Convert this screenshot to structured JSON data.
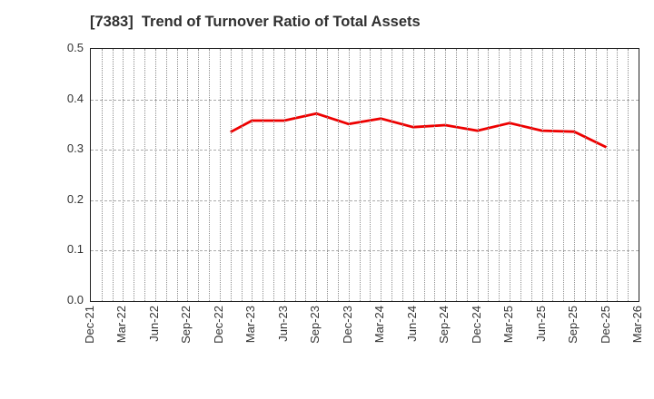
{
  "header": {
    "title": "[7383]  Trend of Turnover Ratio of Total Assets"
  },
  "colors": {
    "line": "#ee0000",
    "spine": "#222222",
    "grid_h": "#ababab",
    "grid_v": "#8f8f8f",
    "text": "#333333",
    "title_text": "#2f2f2f",
    "background": "#ffffff"
  },
  "chart_data": {
    "type": "line",
    "title": "[7383]  Trend of Turnover Ratio of Total Assets",
    "xlabel": "",
    "ylabel": "",
    "ylim": [
      0.0,
      0.5
    ],
    "y_tick_labels": [
      "0.0",
      "0.1",
      "0.2",
      "0.3",
      "0.4",
      "0.5"
    ],
    "x_tick_labels": [
      "Dec-21",
      "Mar-22",
      "Jun-22",
      "Sep-22",
      "Dec-22",
      "Mar-23",
      "Jun-23",
      "Sep-23",
      "Dec-23",
      "Mar-24",
      "Jun-24",
      "Sep-24",
      "Dec-24",
      "Mar-25",
      "Jun-25",
      "Sep-25",
      "Dec-25",
      "Mar-26"
    ],
    "x_months_per_tick": 3,
    "x_total_months": 51,
    "grid": {
      "horizontal": "dashed",
      "vertical": "dotted",
      "vertical_every_months": 1
    },
    "legend": "none",
    "series": [
      {
        "name": "Turnover Ratio of Total Assets",
        "color": "#ee0000",
        "points": [
          {
            "period": "Dec-22",
            "month_index": 13,
            "value": 0.335
          },
          {
            "period": "Mar-23",
            "month_index": 15,
            "value": 0.358
          },
          {
            "period": "Jun-23",
            "month_index": 18,
            "value": 0.358
          },
          {
            "period": "Sep-23",
            "month_index": 21,
            "value": 0.372
          },
          {
            "period": "Dec-23",
            "month_index": 24,
            "value": 0.351
          },
          {
            "period": "Mar-24",
            "month_index": 27,
            "value": 0.362
          },
          {
            "period": "Jun-24",
            "month_index": 30,
            "value": 0.345
          },
          {
            "period": "Sep-24",
            "month_index": 33,
            "value": 0.349
          },
          {
            "period": "Dec-24",
            "month_index": 36,
            "value": 0.338
          },
          {
            "period": "Mar-25",
            "month_index": 39,
            "value": 0.353
          },
          {
            "period": "Jun-25",
            "month_index": 42,
            "value": 0.338
          },
          {
            "period": "Sep-25",
            "month_index": 45,
            "value": 0.336
          },
          {
            "period": "Dec-25",
            "month_index": 48,
            "value": 0.305
          }
        ]
      }
    ]
  }
}
